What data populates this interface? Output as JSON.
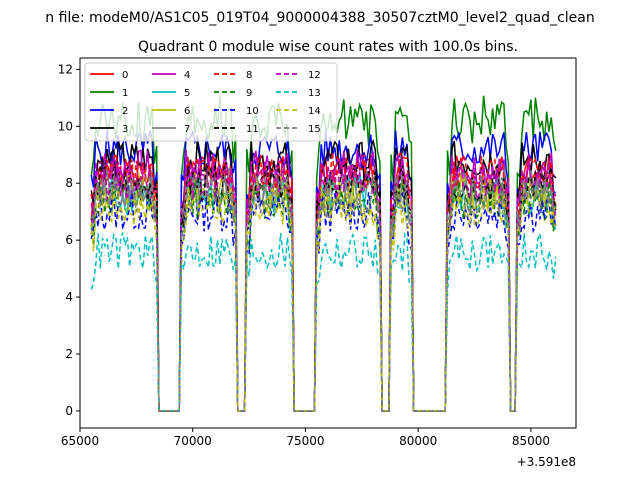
{
  "suptitle": "n file: modeM0/AS1C05_019T04_9000004388_30507cztM0_level2_quad_clean",
  "chart_data": {
    "type": "line",
    "title": "Quadrant 0 module wise count rates with 100.0s bins.",
    "xlabel": "",
    "ylabel": "",
    "offset_label": "+3.591e8",
    "xlim": [
      65000,
      87000
    ],
    "ylim": [
      -0.6,
      12.4
    ],
    "xticks": [
      65000,
      70000,
      75000,
      80000,
      85000
    ],
    "xtick_labels": [
      "65000",
      "70000",
      "75000",
      "80000",
      "85000"
    ],
    "yticks": [
      0,
      2,
      4,
      6,
      8,
      10,
      12
    ],
    "ytick_labels": [
      "0",
      "2",
      "4",
      "6",
      "8",
      "10",
      "12"
    ],
    "grid": false,
    "legend_position": "top-left",
    "legend_columns": 4,
    "bin_size_s": 100,
    "active_windows": [
      [
        65500,
        68400
      ],
      [
        69500,
        71900
      ],
      [
        72400,
        74400
      ],
      [
        75500,
        78300
      ],
      [
        78800,
        79700
      ],
      [
        81300,
        84000
      ],
      [
        84400,
        86100
      ]
    ],
    "series": [
      {
        "name": "0",
        "color": "#ff0000",
        "dash": "solid",
        "level": 8.3
      },
      {
        "name": "1",
        "color": "#008000",
        "dash": "solid",
        "level": 9.9
      },
      {
        "name": "2",
        "color": "#0000ff",
        "dash": "solid",
        "level": 9.2
      },
      {
        "name": "3",
        "color": "#000000",
        "dash": "solid",
        "level": 8.8
      },
      {
        "name": "4",
        "color": "#bf00bf",
        "dash": "solid",
        "level": 8.5
      },
      {
        "name": "5",
        "color": "#00bfbf",
        "dash": "solid",
        "level": 7.6
      },
      {
        "name": "6",
        "color": "#bfbf00",
        "dash": "solid",
        "level": 7.7
      },
      {
        "name": "7",
        "color": "#808080",
        "dash": "solid",
        "level": 7.9
      },
      {
        "name": "8",
        "color": "#ff0000",
        "dash": "dashed",
        "level": 8.4
      },
      {
        "name": "9",
        "color": "#008000",
        "dash": "dashed",
        "level": 7.4
      },
      {
        "name": "10",
        "color": "#0000ff",
        "dash": "dashed",
        "level": 7.0
      },
      {
        "name": "11",
        "color": "#000000",
        "dash": "dashed",
        "level": 8.0
      },
      {
        "name": "12",
        "color": "#bf00bf",
        "dash": "dashed",
        "level": 8.1
      },
      {
        "name": "13",
        "color": "#00bfbf",
        "dash": "dashed",
        "level": 5.6
      },
      {
        "name": "14",
        "color": "#bfbf00",
        "dash": "dashed",
        "level": 7.2
      },
      {
        "name": "15",
        "color": "#808080",
        "dash": "dashed",
        "level": 7.6
      }
    ]
  }
}
